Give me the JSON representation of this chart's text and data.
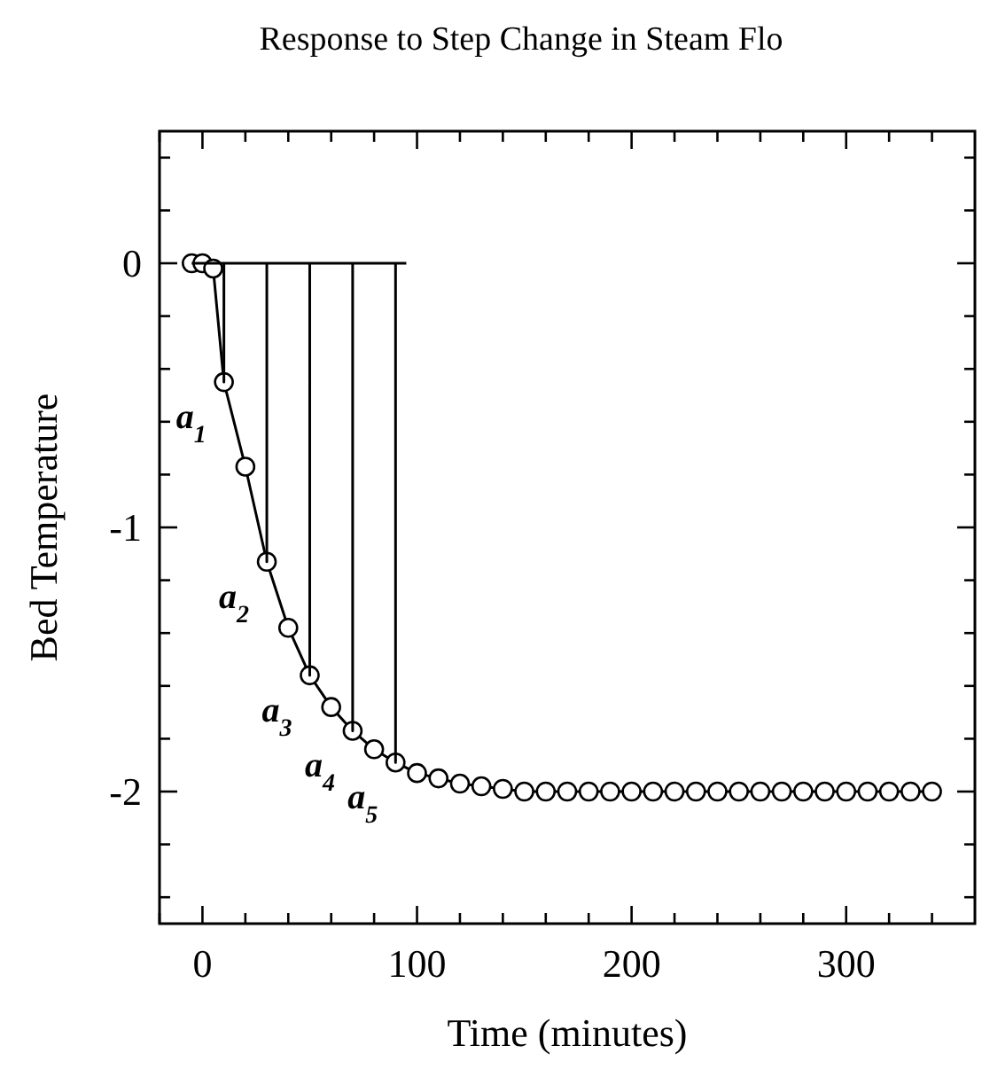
{
  "chart_data": {
    "type": "line",
    "title": "Response to Step Change in Steam Flo",
    "xlabel": "Time (minutes)",
    "ylabel": "Bed Temperature",
    "xlim": [
      -20,
      360
    ],
    "ylim": [
      -2.5,
      0.5
    ],
    "xticks": [
      {
        "value": -20,
        "label": null
      },
      0,
      {
        "value": 20,
        "label": null
      },
      {
        "value": 40,
        "label": null
      },
      {
        "value": 60,
        "label": null
      },
      {
        "value": 80,
        "label": null
      },
      100,
      {
        "value": 120,
        "label": null
      },
      {
        "value": 140,
        "label": null
      },
      {
        "value": 160,
        "label": null
      },
      {
        "value": 180,
        "label": null
      },
      200,
      {
        "value": 220,
        "label": null
      },
      {
        "value": 240,
        "label": null
      },
      {
        "value": 260,
        "label": null
      },
      {
        "value": 280,
        "label": null
      },
      300,
      {
        "value": 320,
        "label": null
      },
      {
        "value": 340,
        "label": null
      }
    ],
    "yticks": [
      {
        "value": -2.4,
        "label": null
      },
      {
        "value": -2.2,
        "label": null
      },
      -2,
      {
        "value": -1.8,
        "label": null
      },
      {
        "value": -1.6,
        "label": null
      },
      {
        "value": -1.4,
        "label": null
      },
      {
        "value": -1.2,
        "label": null
      },
      -1,
      {
        "value": -0.8,
        "label": null
      },
      {
        "value": -0.6,
        "label": null
      },
      {
        "value": -0.4,
        "label": null
      },
      {
        "value": -0.2,
        "label": null
      },
      0,
      {
        "value": 0.2,
        "label": null
      },
      {
        "value": 0.4,
        "label": null
      }
    ],
    "grid": false,
    "series": [
      {
        "color": "#000000",
        "marker": "circle",
        "x": [
          -5,
          0,
          5,
          10,
          20,
          30,
          40,
          50,
          60,
          70,
          80,
          90,
          100,
          110,
          120,
          130,
          140,
          150,
          160,
          170,
          180,
          190,
          200,
          210,
          220,
          230,
          240,
          250,
          260,
          270,
          280,
          290,
          300,
          310,
          320,
          330,
          340
        ],
        "values": [
          0,
          0,
          -0.02,
          -0.45,
          -0.77,
          -1.13,
          -1.38,
          -1.56,
          -1.68,
          -1.77,
          -1.84,
          -1.89,
          -1.93,
          -1.95,
          -1.97,
          -1.98,
          -1.99,
          -2,
          -2,
          -2,
          -2,
          -2,
          -2,
          -2,
          -2,
          -2,
          -2,
          -2,
          -2,
          -2,
          -2,
          -2,
          -2,
          -2,
          -2,
          -2,
          -2
        ]
      },
      {
        "color": "#000000",
        "marker": "none",
        "x": [
          -5,
          10,
          10,
          10,
          30,
          30,
          30,
          50,
          50,
          50,
          70,
          70,
          70,
          90,
          90,
          90,
          95
        ],
        "values": [
          0,
          0,
          -0.45,
          0,
          0,
          -1.13,
          0,
          0,
          -1.56,
          0,
          0,
          -1.77,
          0,
          0,
          -1.89,
          0,
          0
        ]
      }
    ],
    "annotations": [
      {
        "text": "a$_{1}$",
        "x": 10,
        "y": -0.45
      },
      {
        "text": "a$_{2}$",
        "x": 30,
        "y": -1.13
      },
      {
        "text": "a$_{3}$",
        "x": 50,
        "y": -1.56
      },
      {
        "text": "a$_{4}$",
        "x": 70,
        "y": -1.77
      },
      {
        "text": "a$_{5}$",
        "x": 90,
        "y": -1.89
      }
    ]
  }
}
